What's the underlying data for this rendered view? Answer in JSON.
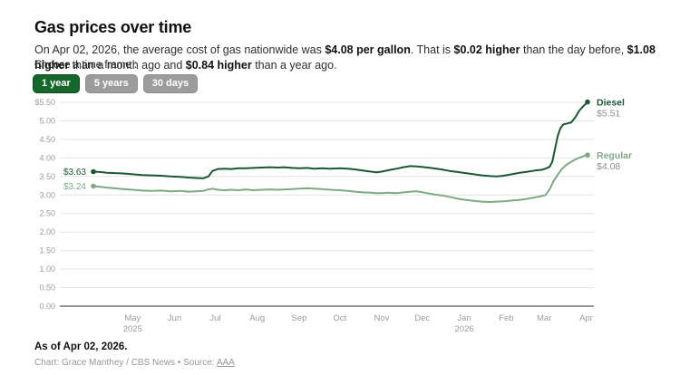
{
  "header": {
    "title": "Gas prices over time",
    "intro_segments": [
      {
        "text": "On Apr 02, 2026, the average cost of gas nationwide was ",
        "bold": false
      },
      {
        "text": "$4.08 per gallon",
        "bold": true
      },
      {
        "text": ". That is ",
        "bold": false
      },
      {
        "text": "$0.02 higher",
        "bold": true
      },
      {
        "text": " than the day before, ",
        "bold": false
      },
      {
        "text": "$1.08 higher",
        "bold": true
      },
      {
        "text": " than a month ago and ",
        "bold": false
      },
      {
        "text": "$0.84 higher",
        "bold": true
      },
      {
        "text": " than a year ago.",
        "bold": false
      }
    ]
  },
  "controls": {
    "label": "Choose a time frame :",
    "buttons": [
      {
        "label": "1 year",
        "selected": true
      },
      {
        "label": "5 years",
        "selected": false
      },
      {
        "label": "30 days",
        "selected": false
      }
    ]
  },
  "colors": {
    "accent_green": "#15672c",
    "button_gray": "#9c9c9c",
    "diesel_green": "#1a5731",
    "regular_green": "#7fa884",
    "muted_text": "#9b9b9b"
  },
  "chart_data": {
    "type": "line",
    "title": "Gas prices over time",
    "x_unit": "days since 2025-04-02",
    "x_range": [
      0,
      365
    ],
    "ylim": [
      0,
      5.5
    ],
    "grid": true,
    "legend_position": "right-of-line-ends",
    "y_ticks": [
      {
        "value": 5.5,
        "label": "$5.50"
      },
      {
        "value": 5.0,
        "label": "5.00"
      },
      {
        "value": 4.5,
        "label": "4.50"
      },
      {
        "value": 4.0,
        "label": "4.00"
      },
      {
        "value": 3.5,
        "label": "3.50"
      },
      {
        "value": 3.0,
        "label": "3.00"
      },
      {
        "value": 2.5,
        "label": "2.50"
      },
      {
        "value": 2.0,
        "label": "2.00"
      },
      {
        "value": 1.5,
        "label": "1.50"
      },
      {
        "value": 1.0,
        "label": "1.00"
      },
      {
        "value": 0.5,
        "label": "0.50"
      },
      {
        "value": 0.0,
        "label": "0.00"
      }
    ],
    "x_ticks": [
      {
        "day": 29,
        "label": "May",
        "year": "2025"
      },
      {
        "day": 60,
        "label": "Jun"
      },
      {
        "day": 90,
        "label": "Jul"
      },
      {
        "day": 121,
        "label": "Aug"
      },
      {
        "day": 152,
        "label": "Sep"
      },
      {
        "day": 182,
        "label": "Oct"
      },
      {
        "day": 213,
        "label": "Nov"
      },
      {
        "day": 243,
        "label": "Dec"
      },
      {
        "day": 274,
        "label": "Jan",
        "year": "2026"
      },
      {
        "day": 305,
        "label": "Feb"
      },
      {
        "day": 333,
        "label": "Mar"
      },
      {
        "day": 364,
        "label": "Apr"
      }
    ],
    "series": [
      {
        "name": "Diesel",
        "color": "#1a5731",
        "start_value_label": "$3.63",
        "end_value_label": "$5.51",
        "start_value": 3.63,
        "end_value": 5.51,
        "points": [
          [
            0,
            3.63
          ],
          [
            5,
            3.62
          ],
          [
            10,
            3.6
          ],
          [
            16,
            3.59
          ],
          [
            22,
            3.58
          ],
          [
            29,
            3.56
          ],
          [
            36,
            3.54
          ],
          [
            43,
            3.53
          ],
          [
            50,
            3.52
          ],
          [
            57,
            3.5
          ],
          [
            64,
            3.49
          ],
          [
            70,
            3.47
          ],
          [
            76,
            3.46
          ],
          [
            81,
            3.45
          ],
          [
            85,
            3.5
          ],
          [
            88,
            3.65
          ],
          [
            92,
            3.7
          ],
          [
            97,
            3.71
          ],
          [
            102,
            3.7
          ],
          [
            107,
            3.72
          ],
          [
            113,
            3.72
          ],
          [
            118,
            3.73
          ],
          [
            124,
            3.74
          ],
          [
            130,
            3.75
          ],
          [
            136,
            3.74
          ],
          [
            141,
            3.75
          ],
          [
            147,
            3.73
          ],
          [
            152,
            3.72
          ],
          [
            158,
            3.73
          ],
          [
            163,
            3.71
          ],
          [
            169,
            3.72
          ],
          [
            175,
            3.71
          ],
          [
            182,
            3.72
          ],
          [
            188,
            3.71
          ],
          [
            193,
            3.69
          ],
          [
            199,
            3.66
          ],
          [
            205,
            3.63
          ],
          [
            209,
            3.61
          ],
          [
            213,
            3.63
          ],
          [
            218,
            3.67
          ],
          [
            224,
            3.71
          ],
          [
            229,
            3.75
          ],
          [
            234,
            3.78
          ],
          [
            239,
            3.77
          ],
          [
            245,
            3.75
          ],
          [
            251,
            3.72
          ],
          [
            257,
            3.69
          ],
          [
            263,
            3.65
          ],
          [
            269,
            3.62
          ],
          [
            275,
            3.59
          ],
          [
            281,
            3.56
          ],
          [
            287,
            3.53
          ],
          [
            293,
            3.51
          ],
          [
            298,
            3.5
          ],
          [
            303,
            3.52
          ],
          [
            309,
            3.56
          ],
          [
            315,
            3.6
          ],
          [
            321,
            3.63
          ],
          [
            326,
            3.66
          ],
          [
            331,
            3.68
          ],
          [
            334,
            3.71
          ],
          [
            337,
            3.76
          ],
          [
            339,
            3.9
          ],
          [
            341,
            4.25
          ],
          [
            343,
            4.6
          ],
          [
            345,
            4.8
          ],
          [
            347,
            4.9
          ],
          [
            350,
            4.93
          ],
          [
            353,
            4.96
          ],
          [
            356,
            5.1
          ],
          [
            359,
            5.28
          ],
          [
            362,
            5.4
          ],
          [
            364,
            5.47
          ],
          [
            365,
            5.51
          ]
        ]
      },
      {
        "name": "Regular",
        "color": "#7fa884",
        "start_value_label": "$3.24",
        "end_value_label": "$4.08",
        "start_value": 3.24,
        "end_value": 4.08,
        "points": [
          [
            0,
            3.24
          ],
          [
            5,
            3.22
          ],
          [
            10,
            3.2
          ],
          [
            16,
            3.18
          ],
          [
            22,
            3.16
          ],
          [
            29,
            3.14
          ],
          [
            36,
            3.12
          ],
          [
            43,
            3.11
          ],
          [
            50,
            3.12
          ],
          [
            57,
            3.1
          ],
          [
            64,
            3.11
          ],
          [
            70,
            3.09
          ],
          [
            76,
            3.1
          ],
          [
            81,
            3.11
          ],
          [
            85,
            3.15
          ],
          [
            88,
            3.17
          ],
          [
            92,
            3.14
          ],
          [
            97,
            3.13
          ],
          [
            102,
            3.14
          ],
          [
            107,
            3.13
          ],
          [
            113,
            3.15
          ],
          [
            118,
            3.13
          ],
          [
            124,
            3.14
          ],
          [
            130,
            3.15
          ],
          [
            136,
            3.14
          ],
          [
            141,
            3.15
          ],
          [
            147,
            3.16
          ],
          [
            152,
            3.17
          ],
          [
            158,
            3.18
          ],
          [
            163,
            3.17
          ],
          [
            169,
            3.16
          ],
          [
            175,
            3.14
          ],
          [
            182,
            3.13
          ],
          [
            188,
            3.11
          ],
          [
            193,
            3.09
          ],
          [
            199,
            3.07
          ],
          [
            205,
            3.06
          ],
          [
            209,
            3.05
          ],
          [
            213,
            3.05
          ],
          [
            218,
            3.06
          ],
          [
            224,
            3.05
          ],
          [
            229,
            3.07
          ],
          [
            234,
            3.09
          ],
          [
            239,
            3.1
          ],
          [
            245,
            3.06
          ],
          [
            251,
            3.02
          ],
          [
            257,
            2.99
          ],
          [
            263,
            2.95
          ],
          [
            269,
            2.9
          ],
          [
            275,
            2.87
          ],
          [
            281,
            2.84
          ],
          [
            287,
            2.82
          ],
          [
            293,
            2.81
          ],
          [
            298,
            2.82
          ],
          [
            303,
            2.83
          ],
          [
            309,
            2.85
          ],
          [
            315,
            2.87
          ],
          [
            321,
            2.9
          ],
          [
            327,
            2.94
          ],
          [
            331,
            2.97
          ],
          [
            334,
            3.0
          ],
          [
            337,
            3.15
          ],
          [
            340,
            3.38
          ],
          [
            343,
            3.55
          ],
          [
            346,
            3.7
          ],
          [
            349,
            3.8
          ],
          [
            353,
            3.9
          ],
          [
            356,
            3.96
          ],
          [
            360,
            4.02
          ],
          [
            363,
            4.06
          ],
          [
            365,
            4.08
          ]
        ]
      }
    ]
  },
  "footer": {
    "as_of": "As of Apr 02, 2026.",
    "credit_prefix": "Chart: Grace Manthey / CBS News • Source: ",
    "source_link": "AAA"
  }
}
